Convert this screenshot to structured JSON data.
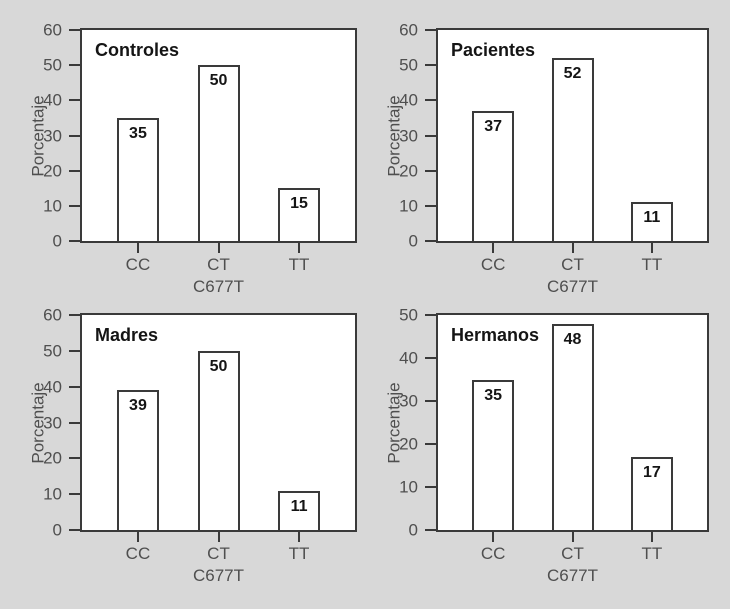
{
  "figure": {
    "background_color": "#d8d8d8",
    "plot_background_color": "#ffffff",
    "line_color": "#3a3a3a",
    "tick_text_color": "#4f4f4f",
    "title_text_color": "#151515",
    "bar_fill_color": "#ffffff"
  },
  "chart_data": [
    {
      "type": "bar",
      "title": "Controles",
      "categories": [
        "CC",
        "CT",
        "TT"
      ],
      "values": [
        35,
        50,
        15
      ],
      "xlabel": "C677T",
      "ylabel": "Porcentaje",
      "ylim": [
        0,
        60
      ],
      "yticks": [
        0,
        10,
        20,
        30,
        40,
        50,
        60
      ],
      "grid": false,
      "legend": false
    },
    {
      "type": "bar",
      "title": "Pacientes",
      "categories": [
        "CC",
        "CT",
        "TT"
      ],
      "values": [
        37,
        52,
        11
      ],
      "xlabel": "C677T",
      "ylabel": "Porcentaje",
      "ylim": [
        0,
        60
      ],
      "yticks": [
        0,
        10,
        20,
        30,
        40,
        50,
        60
      ],
      "grid": false,
      "legend": false
    },
    {
      "type": "bar",
      "title": "Madres",
      "categories": [
        "CC",
        "CT",
        "TT"
      ],
      "values": [
        39,
        50,
        11
      ],
      "xlabel": "C677T",
      "ylabel": "Porcentaje",
      "ylim": [
        0,
        60
      ],
      "yticks": [
        0,
        10,
        20,
        30,
        40,
        50,
        60
      ],
      "grid": false,
      "legend": false
    },
    {
      "type": "bar",
      "title": "Hermanos",
      "categories": [
        "CC",
        "CT",
        "TT"
      ],
      "values": [
        35,
        48,
        17
      ],
      "xlabel": "C677T",
      "ylabel": "Porcentaje",
      "ylim": [
        0,
        50
      ],
      "yticks": [
        0,
        10,
        20,
        30,
        40,
        50
      ],
      "grid": false,
      "legend": false
    }
  ]
}
